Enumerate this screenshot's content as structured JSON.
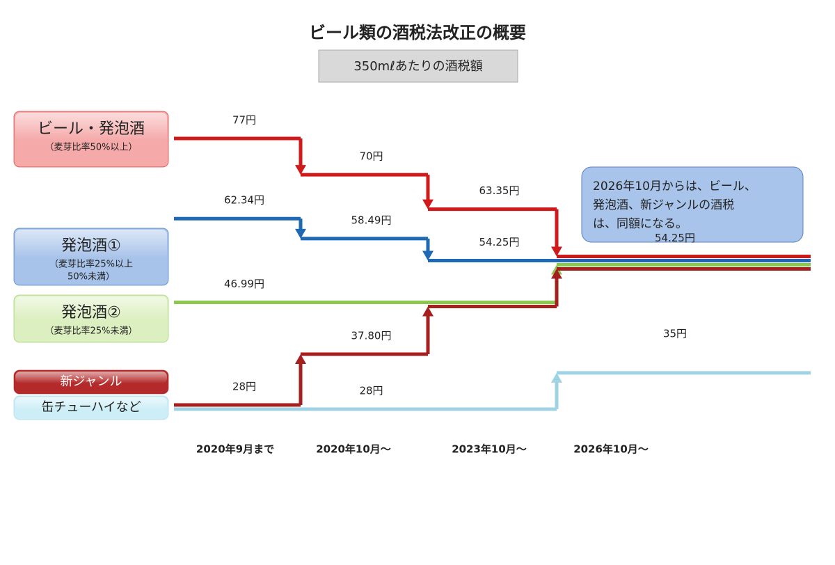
{
  "chart_data": {
    "type": "step",
    "title": "ビール類の酒税法改正の概要",
    "subtitle": "350mℓあたりの酒税額",
    "categories": [
      "2020年9月まで",
      "2020年10月～",
      "2023年10月～",
      "2026年10月～"
    ],
    "series": [
      {
        "name": "ビール・発泡酒",
        "notes": [
          "（麦芽比率50%以上）"
        ],
        "color": "#d0191b",
        "box": "#f5a9a9",
        "values": [
          77,
          70,
          63.35,
          54.25
        ],
        "value_labels": [
          "77円",
          "70円",
          "63.35円",
          "54.25円"
        ]
      },
      {
        "name": "発泡酒①",
        "notes": [
          "（麦芽比率25%以上",
          "50%未満）"
        ],
        "color": "#1f68b3",
        "box": "#a8c3ea",
        "values": [
          62.34,
          58.49,
          54.25,
          54.25
        ],
        "value_labels": [
          "62.34円",
          "58.49円",
          "54.25円",
          null
        ]
      },
      {
        "name": "発泡酒②",
        "notes": [
          "（麦芽比率25%未満）"
        ],
        "color": "#8cc850",
        "box": "#dcefc0",
        "values": [
          46.99,
          46.99,
          46.99,
          54.25
        ],
        "value_labels": [
          "46.99円",
          null,
          null,
          null
        ]
      },
      {
        "name": "新ジャンル",
        "notes": [],
        "color": "#a51f1f",
        "box": "#b42a2a",
        "values": [
          28,
          37.8,
          46.99,
          54.25
        ],
        "value_labels": [
          "28円",
          "37.80円",
          null,
          null
        ]
      },
      {
        "name": "缶チューハイなど",
        "notes": [],
        "color": "#9fd3e3",
        "box": "#cdeef7",
        "values": [
          28,
          28,
          28,
          35
        ],
        "value_labels": [
          null,
          "28円",
          null,
          "35円"
        ]
      }
    ],
    "callout": [
      "2026年10月からは、ビール、",
      "発泡酒、新ジャンルの酒税",
      "は、同額になる。"
    ]
  }
}
